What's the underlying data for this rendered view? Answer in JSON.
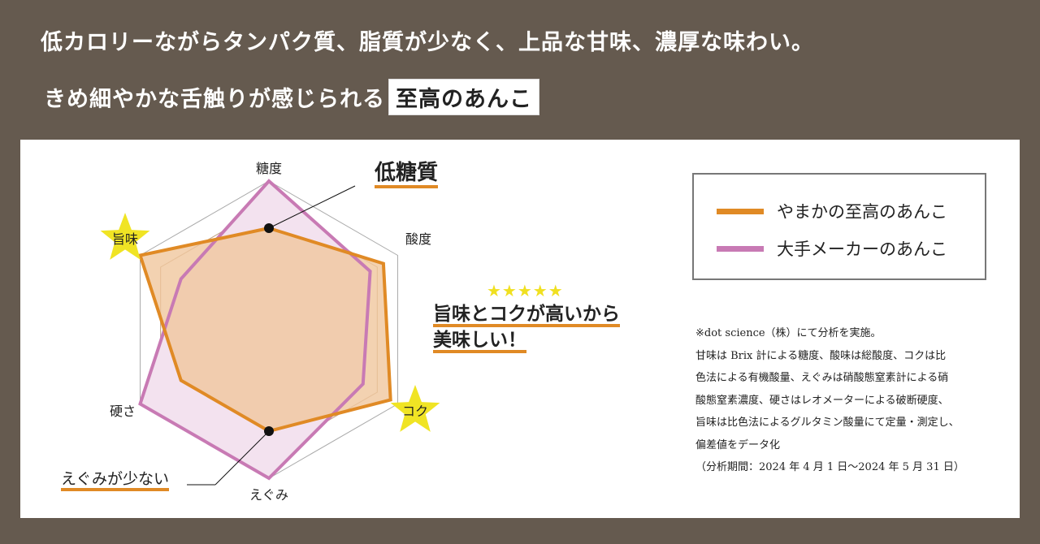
{
  "header": {
    "line1": "低カロリーながらタンパク質、脂質が少なく、上品な甘味、濃厚な味わい。",
    "line2": "きめ細やかな舌触りが感じられる",
    "line2_highlight": "至高のあんこ"
  },
  "annotations": {
    "low_sugar": "低糖質",
    "stars": "★★★★★",
    "tasty_line1": "旨味とコクが高いから",
    "tasty_line2": "美味しい！",
    "less_egumi": "えぐみが少ない"
  },
  "legend": [
    {
      "label": "やまかの至高のあんこ",
      "color": "#e08a25"
    },
    {
      "label": "大手メーカーのあんこ",
      "color": "#c87ab4"
    }
  ],
  "notes": [
    "※dot science（株）にて分析を実施。",
    "甘味は Brix 計による糖度、酸味は総酸度、コクは比",
    "色法による有機酸量、えぐみは硝酸態窒素計による硝",
    "酸態窒素濃度、硬さはレオメーターによる破断硬度、",
    "旨味は比色法によるグルタミン酸量にて定量・測定し、",
    "偏差値をデータ化",
    "（分析期間：2024 年 4 月 1 日～2024 年 5 月 31 日）"
  ],
  "chart_data": {
    "type": "radar",
    "axes": [
      "糖度",
      "酸度",
      "コク",
      "えぐみ",
      "硬さ",
      "旨味"
    ],
    "highlighted_axes": [
      "旨味",
      "コク"
    ],
    "grid_rings": 6,
    "range": [
      0,
      6
    ],
    "grid": true,
    "legend_position": "right",
    "series": [
      {
        "name": "やまかの至高のあんこ",
        "color": "#e08a25",
        "fill": "#f0c79e",
        "values": [
          4.0,
          5.3,
          5.65,
          4.0,
          4.0,
          6.0
        ],
        "markers_on": [
          "糖度",
          "えぐみ"
        ]
      },
      {
        "name": "大手メーカーのあんこ",
        "color": "#c87ab4",
        "fill": "#f3e2ef",
        "values": [
          6.0,
          4.65,
          4.3,
          6.0,
          6.0,
          4.0
        ]
      }
    ]
  }
}
